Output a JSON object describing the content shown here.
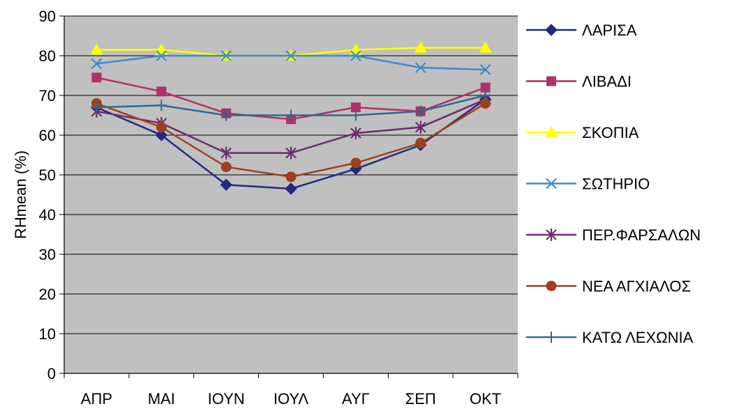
{
  "chart_data": {
    "type": "line",
    "title": "",
    "xlabel": "",
    "ylabel": "RHmean (%)",
    "ylim": [
      0,
      90
    ],
    "yticks": [
      0,
      10,
      20,
      30,
      40,
      50,
      60,
      70,
      80,
      90
    ],
    "grid": true,
    "legend_position": "right",
    "categories": [
      "ΑΠΡ",
      "ΜΑΙ",
      "ΙΟΥΝ",
      "ΙΟΥΛ",
      "ΑΥΓ",
      "ΣΕΠ",
      "ΟΚΤ"
    ],
    "plot_background": "#c0c0c0",
    "series": [
      {
        "name": "ΛΑΡΙΣΑ",
        "color": "#1f2a80",
        "marker": "diamond",
        "values": [
          67,
          60,
          47.5,
          46.5,
          51.5,
          57.5,
          69
        ]
      },
      {
        "name": "ΛΙΒΑΔΙ",
        "color": "#b0306a",
        "marker": "square",
        "values": [
          74.5,
          71,
          65.5,
          64,
          67,
          66,
          72
        ]
      },
      {
        "name": "ΣΚΟΠΙΑ",
        "color": "#ffff00",
        "marker": "triangle",
        "values": [
          81.5,
          81.5,
          80,
          80,
          81.5,
          82,
          82
        ]
      },
      {
        "name": "ΣΩΤΗΡΙΟ",
        "color": "#3a8ad0",
        "marker": "x",
        "values": [
          78,
          80,
          80,
          80,
          80,
          77,
          76.5
        ]
      },
      {
        "name": "ΠΕΡ.ΦΑΡΣΑΛΩΝ",
        "color": "#6a2a70",
        "marker": "star",
        "values": [
          66,
          63,
          55.5,
          55.5,
          60.5,
          62,
          69
        ]
      },
      {
        "name": "ΝΕΑ ΑΓΧΙΑΛΟΣ",
        "color": "#a0401a",
        "marker": "circle",
        "values": [
          68,
          62,
          52,
          49.5,
          53,
          58,
          68
        ]
      },
      {
        "name": "ΚΑΤΩ ΛΕΧΩΝΙΑ",
        "color": "#2a6a90",
        "marker": "plus",
        "values": [
          67,
          67.5,
          65,
          65,
          65,
          66,
          70
        ]
      }
    ]
  }
}
